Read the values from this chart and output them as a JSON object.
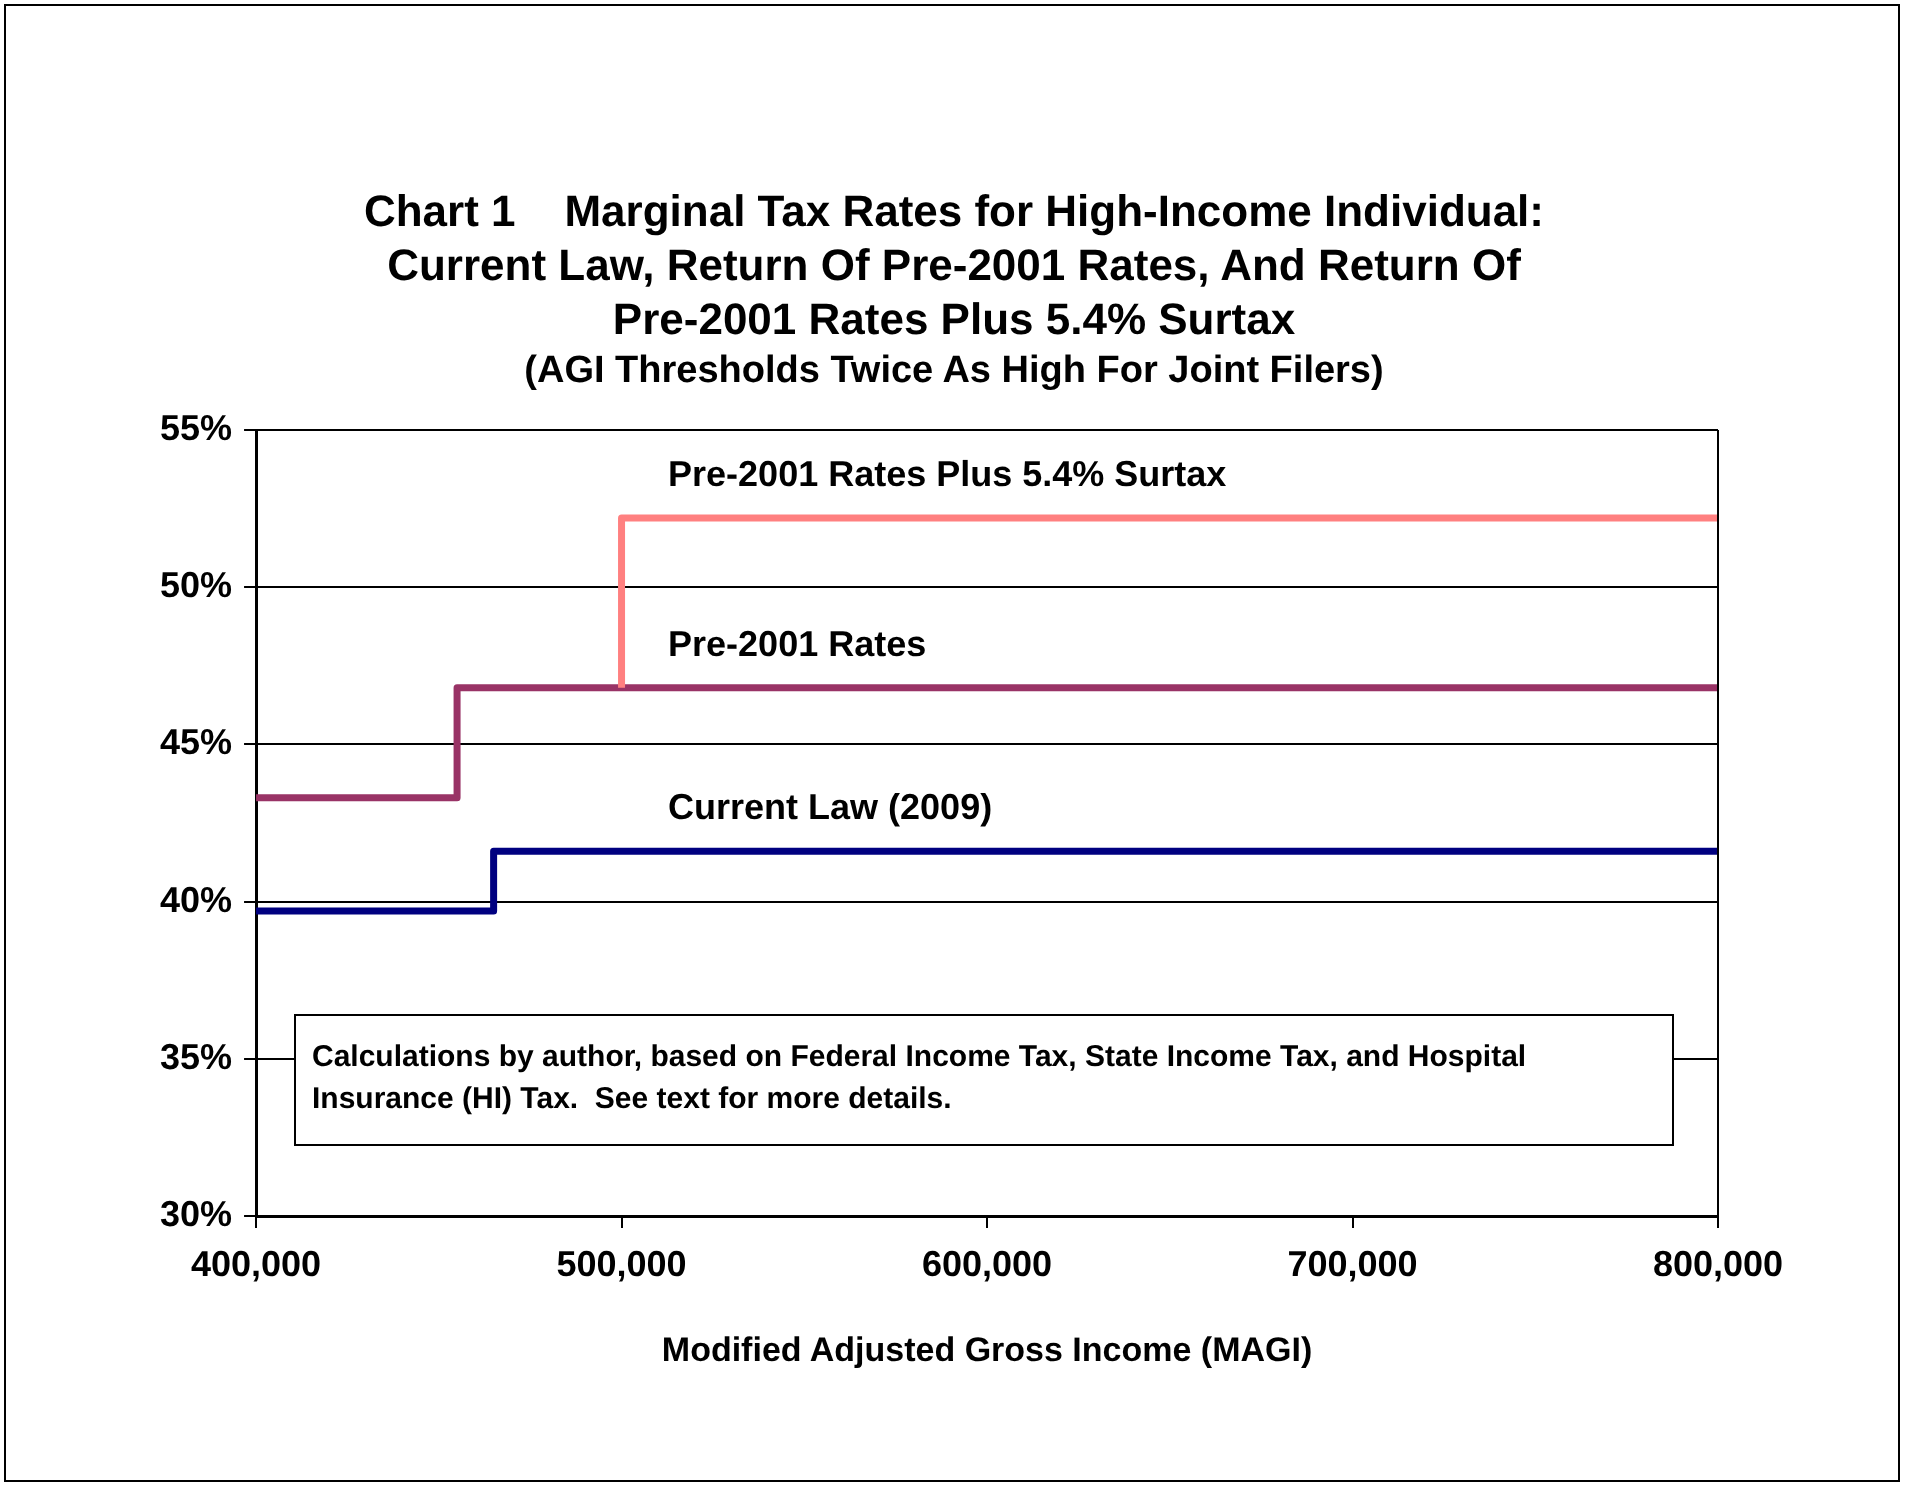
{
  "chart_data": {
    "type": "step",
    "title": "Chart 1    Marginal Tax Rates for High-Income Individual: Current Law, Return Of Pre-2001 Rates, And Return Of Pre-2001 Rates Plus 5.4% Surtax",
    "subtitle": "(AGI Thresholds Twice As High For Joint Filers)",
    "xlabel": "Modified Adjusted Gross Income (MAGI)",
    "series": [
      {
        "name": "Pre-2001 Rates Plus 5.4% Surtax",
        "color": "#ff8080",
        "x": [
          500000,
          500000,
          800000
        ],
        "values": [
          46.8,
          52.2,
          52.2
        ]
      },
      {
        "name": "Pre-2001 Rates",
        "color": "#993366",
        "x": [
          400000,
          455000,
          800000
        ],
        "values": [
          43.3,
          46.8,
          46.8
        ]
      },
      {
        "name": "Current Law (2009)",
        "color": "#000080",
        "x": [
          400000,
          465000,
          800000
        ],
        "values": [
          39.7,
          41.6,
          41.6
        ]
      }
    ],
    "xlim": [
      400000,
      800000
    ],
    "xticks": [
      {
        "value": 400000,
        "label": "400,000"
      },
      {
        "value": 500000,
        "label": "500,000"
      },
      {
        "value": 600000,
        "label": "600,000"
      },
      {
        "value": 700000,
        "label": "700,000"
      },
      {
        "value": 800000,
        "label": "800,000"
      }
    ],
    "ylim": [
      30,
      55
    ],
    "yticks": [
      {
        "value": 30,
        "label": "30%"
      },
      {
        "value": 35,
        "label": "35%"
      },
      {
        "value": 40,
        "label": "40%"
      },
      {
        "value": 45,
        "label": "45%"
      },
      {
        "value": 50,
        "label": "50%"
      },
      {
        "value": 55,
        "label": "55%"
      }
    ],
    "grid": "y",
    "legend": false,
    "marker": "none",
    "line_style": "solid",
    "annotations": [
      "Calculations by author, based on Federal Income Tax, State Income Tax, and Hospital Insurance (HI) Tax.  See text for more details."
    ]
  }
}
